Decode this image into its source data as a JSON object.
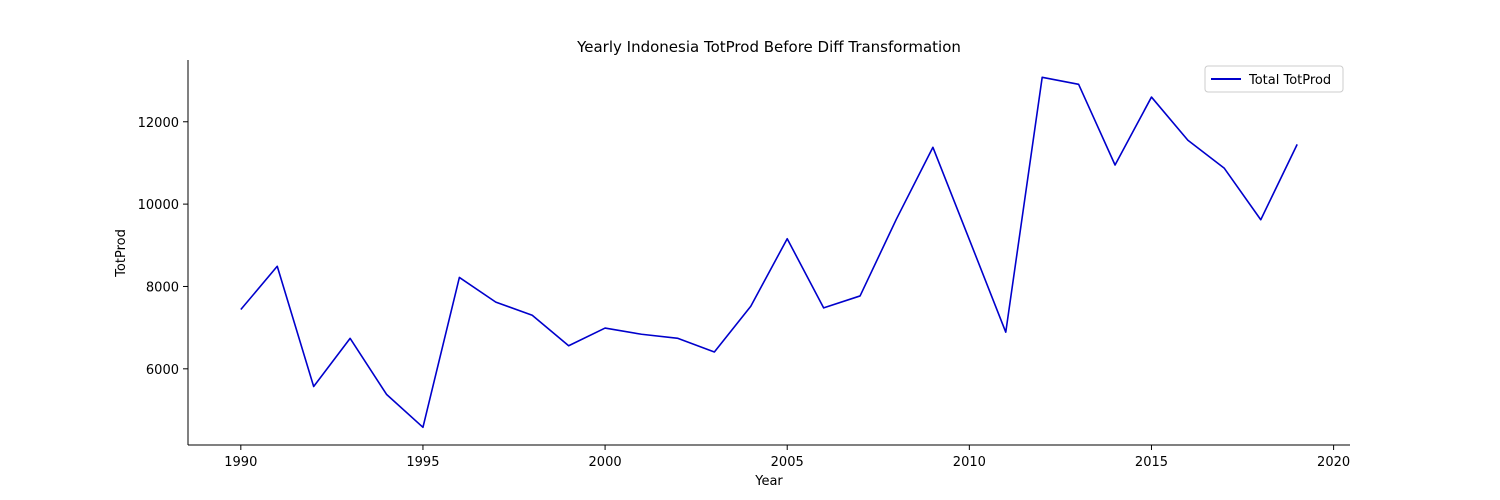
{
  "chart_data": {
    "type": "line",
    "title": "Yearly Indonesia TotProd Before Diff Transformation",
    "xlabel": "Year",
    "ylabel": "TotProd",
    "xlim": [
      1988.55,
      2020.45
    ],
    "ylim": [
      4150,
      13500
    ],
    "xticks": [
      1990,
      1995,
      2000,
      2005,
      2010,
      2015,
      2020
    ],
    "yticks": [
      6000,
      8000,
      10000,
      12000
    ],
    "grid": false,
    "legend_position": "top-right",
    "series": [
      {
        "name": "Total TotProd",
        "color": "#0000cc",
        "x": [
          1990,
          1991,
          1992,
          1993,
          1994,
          1995,
          1996,
          1997,
          1998,
          1999,
          2000,
          2001,
          2002,
          2003,
          2004,
          2005,
          2006,
          2007,
          2008,
          2009,
          2010,
          2011,
          2012,
          2013,
          2014,
          2015,
          2016,
          2017,
          2018,
          2019
        ],
        "values": [
          7440,
          8490,
          5570,
          6740,
          5380,
          4580,
          8220,
          7620,
          7300,
          6560,
          6990,
          6840,
          6740,
          6410,
          7520,
          9160,
          7480,
          7770,
          9640,
          11380,
          9140,
          6890,
          13080,
          12910,
          10950,
          12600,
          11550,
          10870,
          9620,
          11450
        ]
      }
    ]
  }
}
